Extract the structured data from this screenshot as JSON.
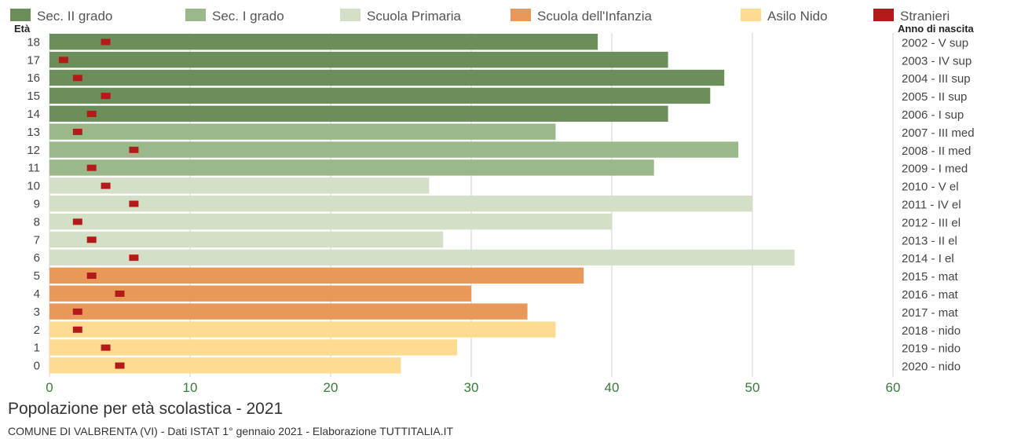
{
  "chart_data": {
    "type": "bar",
    "orientation": "horizontal",
    "title": "Popolazione per età scolastica - 2021",
    "subtitle": "COMUNE DI VALBRENTA (VI) - Dati ISTAT 1° gennaio 2021 - Elaborazione TUTTITALIA.IT",
    "ylabel_left": "Età",
    "ylabel_right": "Anno di nascita",
    "xlim": [
      0,
      60
    ],
    "xticks": [
      "0",
      "10",
      "20",
      "30",
      "40",
      "50",
      "60"
    ],
    "grid": true,
    "legend_position": "top",
    "legend": [
      {
        "key": "sup",
        "name": "Sec. II grado",
        "color": "#6b8e5a"
      },
      {
        "key": "med",
        "name": "Sec. I grado",
        "color": "#9bb88a"
      },
      {
        "key": "el",
        "name": "Scuola Primaria",
        "color": "#d3dfc6"
      },
      {
        "key": "mat",
        "name": "Scuola dell'Infanzia",
        "color": "#e8995a"
      },
      {
        "key": "nido",
        "name": "Asilo Nido",
        "color": "#fddc91"
      },
      {
        "key": "stranieri",
        "name": "Stranieri",
        "color": "#b31b1b"
      }
    ],
    "rows": [
      {
        "age": "18",
        "birth": "2002 - V sup",
        "group": "sup",
        "total": 39,
        "stranieri": 4
      },
      {
        "age": "17",
        "birth": "2003 - IV sup",
        "group": "sup",
        "total": 44,
        "stranieri": 1
      },
      {
        "age": "16",
        "birth": "2004 - III sup",
        "group": "sup",
        "total": 48,
        "stranieri": 2
      },
      {
        "age": "15",
        "birth": "2005 - II sup",
        "group": "sup",
        "total": 47,
        "stranieri": 4
      },
      {
        "age": "14",
        "birth": "2006 - I sup",
        "group": "sup",
        "total": 44,
        "stranieri": 3
      },
      {
        "age": "13",
        "birth": "2007 - III med",
        "group": "med",
        "total": 36,
        "stranieri": 2
      },
      {
        "age": "12",
        "birth": "2008 - II med",
        "group": "med",
        "total": 49,
        "stranieri": 6
      },
      {
        "age": "11",
        "birth": "2009 - I med",
        "group": "med",
        "total": 43,
        "stranieri": 3
      },
      {
        "age": "10",
        "birth": "2010 - V el",
        "group": "el",
        "total": 27,
        "stranieri": 4
      },
      {
        "age": "9",
        "birth": "2011 - IV el",
        "group": "el",
        "total": 50,
        "stranieri": 6
      },
      {
        "age": "8",
        "birth": "2012 - III el",
        "group": "el",
        "total": 40,
        "stranieri": 2
      },
      {
        "age": "7",
        "birth": "2013 - II el",
        "group": "el",
        "total": 28,
        "stranieri": 3
      },
      {
        "age": "6",
        "birth": "2014 - I el",
        "group": "el",
        "total": 53,
        "stranieri": 6
      },
      {
        "age": "5",
        "birth": "2015 - mat",
        "group": "mat",
        "total": 38,
        "stranieri": 3
      },
      {
        "age": "4",
        "birth": "2016 - mat",
        "group": "mat",
        "total": 30,
        "stranieri": 5
      },
      {
        "age": "3",
        "birth": "2017 - mat",
        "group": "mat",
        "total": 34,
        "stranieri": 2
      },
      {
        "age": "2",
        "birth": "2018 - nido",
        "group": "nido",
        "total": 36,
        "stranieri": 2
      },
      {
        "age": "1",
        "birth": "2019 - nido",
        "group": "nido",
        "total": 29,
        "stranieri": 4
      },
      {
        "age": "0",
        "birth": "2020 - nido",
        "group": "nido",
        "total": 25,
        "stranieri": 5
      }
    ]
  }
}
